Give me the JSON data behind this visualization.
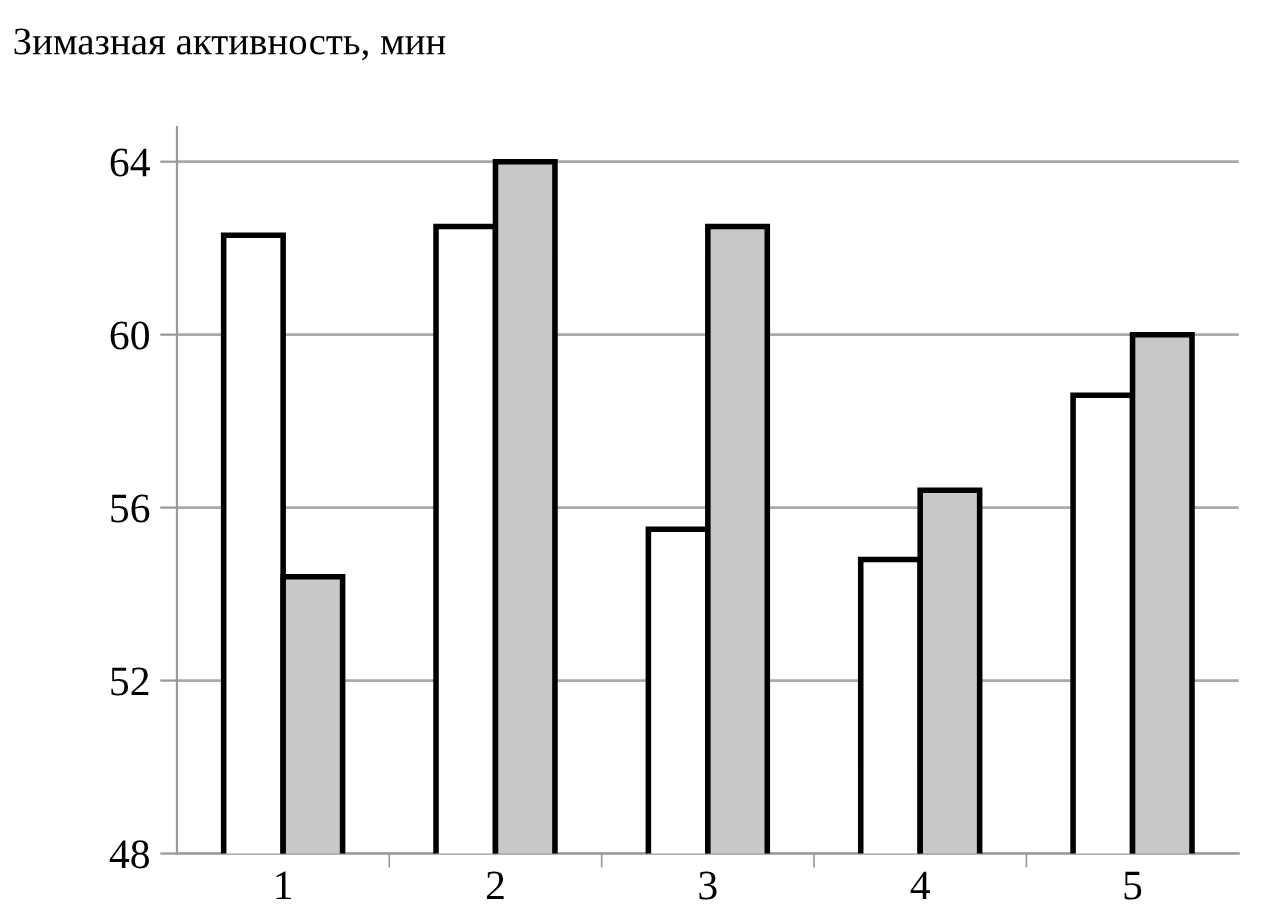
{
  "chart_data": {
    "type": "bar",
    "ylabel": "Зимазная активность, мин",
    "categories": [
      "1",
      "2",
      "3",
      "4",
      "5"
    ],
    "series": [
      {
        "color": "#ffffff",
        "values": [
          62.3,
          62.5,
          55.5,
          54.8,
          58.6
        ]
      },
      {
        "color": "#c8c8c8",
        "values": [
          54.4,
          64.0,
          62.5,
          56.4,
          60.0
        ]
      }
    ],
    "ylim": [
      48,
      64.8
    ],
    "yticks": [
      48,
      52,
      56,
      60,
      64
    ],
    "grid": "y",
    "legend": false
  }
}
